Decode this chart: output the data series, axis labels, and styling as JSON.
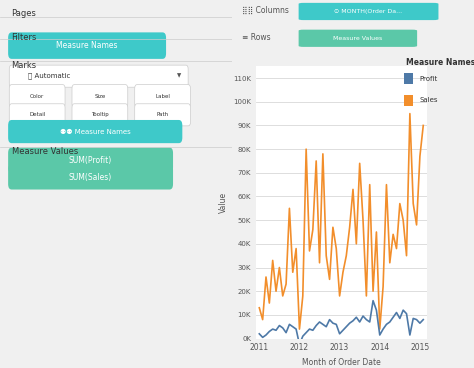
{
  "xlabel": "Month of Order Date",
  "ylabel": "Value",
  "ylim": [
    0,
    115000
  ],
  "yticks": [
    0,
    10000,
    20000,
    30000,
    40000,
    50000,
    60000,
    70000,
    80000,
    90000,
    100000,
    110000
  ],
  "ytick_labels": [
    "0K",
    "10K",
    "20K",
    "30K",
    "40K",
    "50K",
    "60K",
    "70K",
    "80K",
    "90K",
    "100K",
    "110K"
  ],
  "profit_color": "#4e79a7",
  "sales_color": "#f28e2b",
  "legend_title": "Measure Names",
  "legend_items": [
    "Profit",
    "Sales"
  ],
  "bg_color": "#f0f0f0",
  "plot_bg_color": "#ffffff",
  "sidebar_bg": "#f0f0f0",
  "grid_color": "#d8d8d8",
  "pill_color": "#3ec9c9",
  "pill_color2": "#5bc8a8",
  "header_bg": "#ffffff",
  "profit_data": [
    2000,
    500,
    1500,
    3000,
    4000,
    3500,
    5500,
    4500,
    2500,
    6000,
    5000,
    4000,
    -2500,
    1000,
    2500,
    4000,
    3500,
    5500,
    7000,
    6000,
    5000,
    8000,
    6500,
    6000,
    2000,
    3500,
    5000,
    6500,
    7500,
    9000,
    7000,
    9500,
    8000,
    7000,
    16000,
    12000,
    1500,
    4000,
    6000,
    7000,
    9000,
    11000,
    8500,
    12000,
    10500,
    1500,
    8500,
    8000,
    6500,
    8000
  ],
  "sales_data": [
    13000,
    8000,
    26000,
    15000,
    33000,
    20000,
    30000,
    18000,
    23000,
    55000,
    28000,
    38000,
    4000,
    18000,
    80000,
    37000,
    46000,
    75000,
    32000,
    78000,
    35000,
    25000,
    47000,
    38000,
    18000,
    28000,
    35000,
    47000,
    63000,
    40000,
    74000,
    50000,
    18000,
    65000,
    20000,
    45000,
    4000,
    22000,
    65000,
    32000,
    44000,
    38000,
    57000,
    50000,
    35000,
    95000,
    57000,
    48000,
    77000,
    90000
  ],
  "xtick_years": [
    "2011",
    "2012",
    "2013",
    "2014",
    "2015"
  ],
  "xtick_positions": [
    0,
    12,
    24,
    36,
    48
  ]
}
